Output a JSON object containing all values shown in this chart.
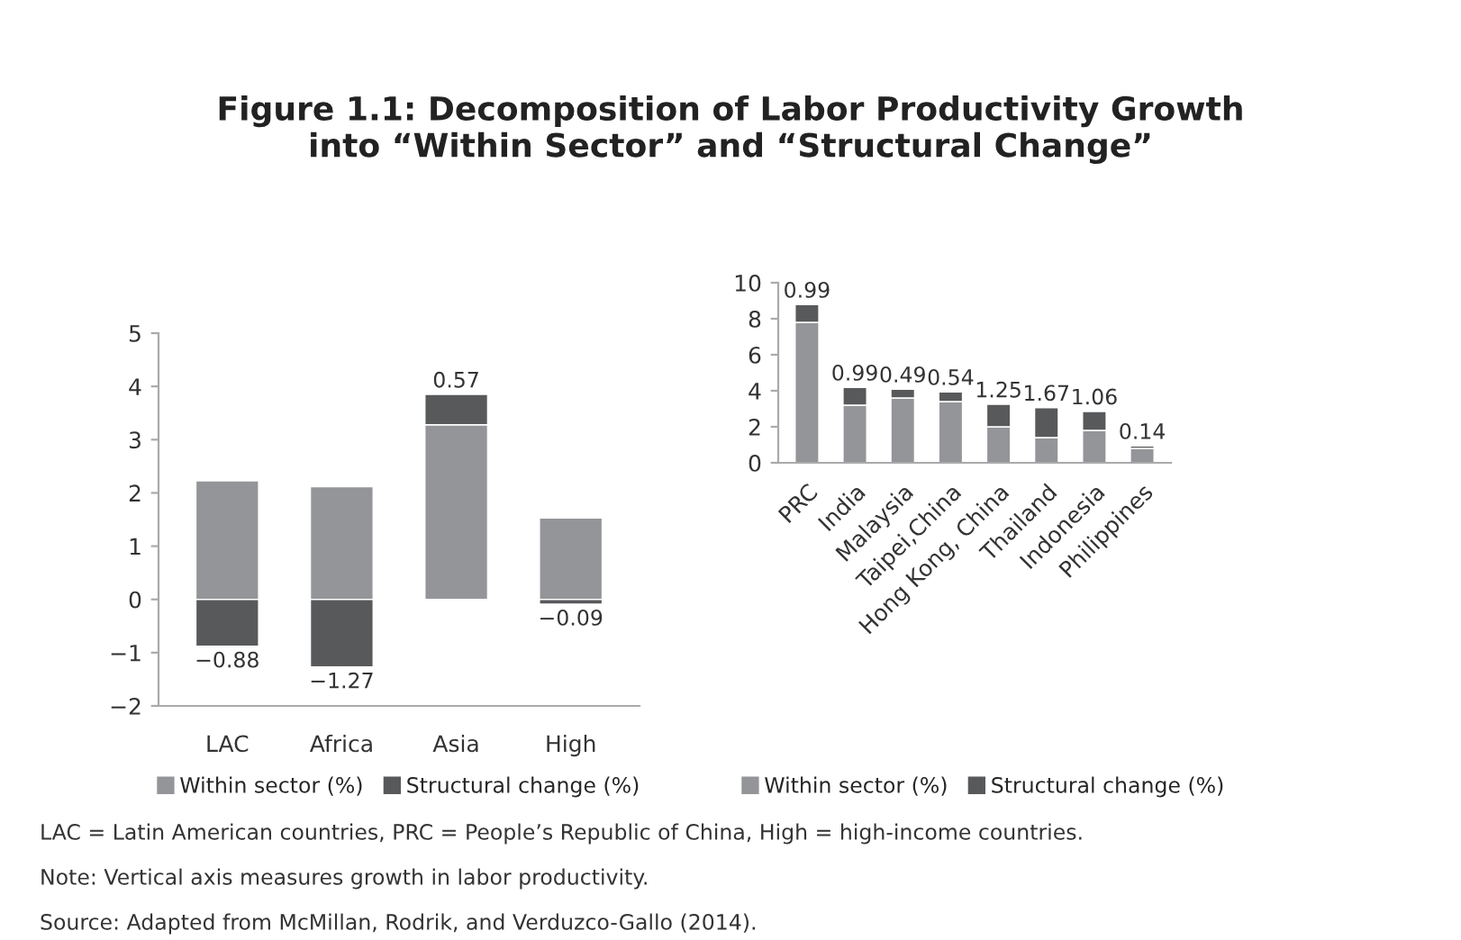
{
  "chart_data": [
    {
      "type": "bar",
      "stacked": true,
      "title": "Figure 1.1: Decomposition of Labor Productivity Growth\ninto “Within Sector” and “Structural Change”",
      "categories": [
        "LAC",
        "Africa",
        "Asia",
        "High"
      ],
      "series": [
        {
          "name": "Within sector (%)",
          "color": "#939598",
          "values": [
            2.23,
            2.12,
            3.28,
            1.53
          ]
        },
        {
          "name": "Structural change (%)",
          "color": "#58595b",
          "values": [
            -0.88,
            -1.27,
            0.57,
            -0.09
          ],
          "value_labels": [
            "−0.88",
            "−1.27",
            "0.57",
            "−0.09"
          ]
        }
      ],
      "ylim": [
        -2,
        5
      ],
      "yticks": [
        {
          "value": -2,
          "label": "−2"
        },
        {
          "value": -1,
          "label": "−1"
        },
        0,
        1,
        2,
        3,
        4,
        5
      ],
      "legend": "bottom",
      "grid": false,
      "annotations": [
        "LAC = Latin American countries, PRC = People’s Republic of China, High = high-income countries.",
        "Note: Vertical axis measures growth in labor productivity.",
        "Source: Adapted from McMillan, Rodrik, and Verduzco-Gallo (2014)."
      ]
    },
    {
      "type": "bar",
      "stacked": true,
      "categories": [
        "PRC",
        "India",
        "Malaysia",
        "Taipei,China",
        "Hong Kong, China",
        "Thailand",
        "Indonesia",
        "Philippines"
      ],
      "series": [
        {
          "name": "Within sector (%)",
          "color": "#939598",
          "values": [
            7.8,
            3.2,
            3.6,
            3.4,
            2.0,
            1.4,
            1.8,
            0.8
          ]
        },
        {
          "name": "Structural change (%)",
          "color": "#58595b",
          "values": [
            0.99,
            0.99,
            0.49,
            0.54,
            1.25,
            1.67,
            1.06,
            0.14
          ],
          "value_labels": [
            "0.99",
            "0.99",
            "0.49",
            "0.54",
            "1.25",
            "1.67",
            "1.06",
            "0.14"
          ]
        }
      ],
      "ylim": [
        0,
        10
      ],
      "yticks": [
        0,
        2,
        4,
        6,
        8,
        10
      ],
      "legend": "bottom",
      "grid": false
    }
  ]
}
